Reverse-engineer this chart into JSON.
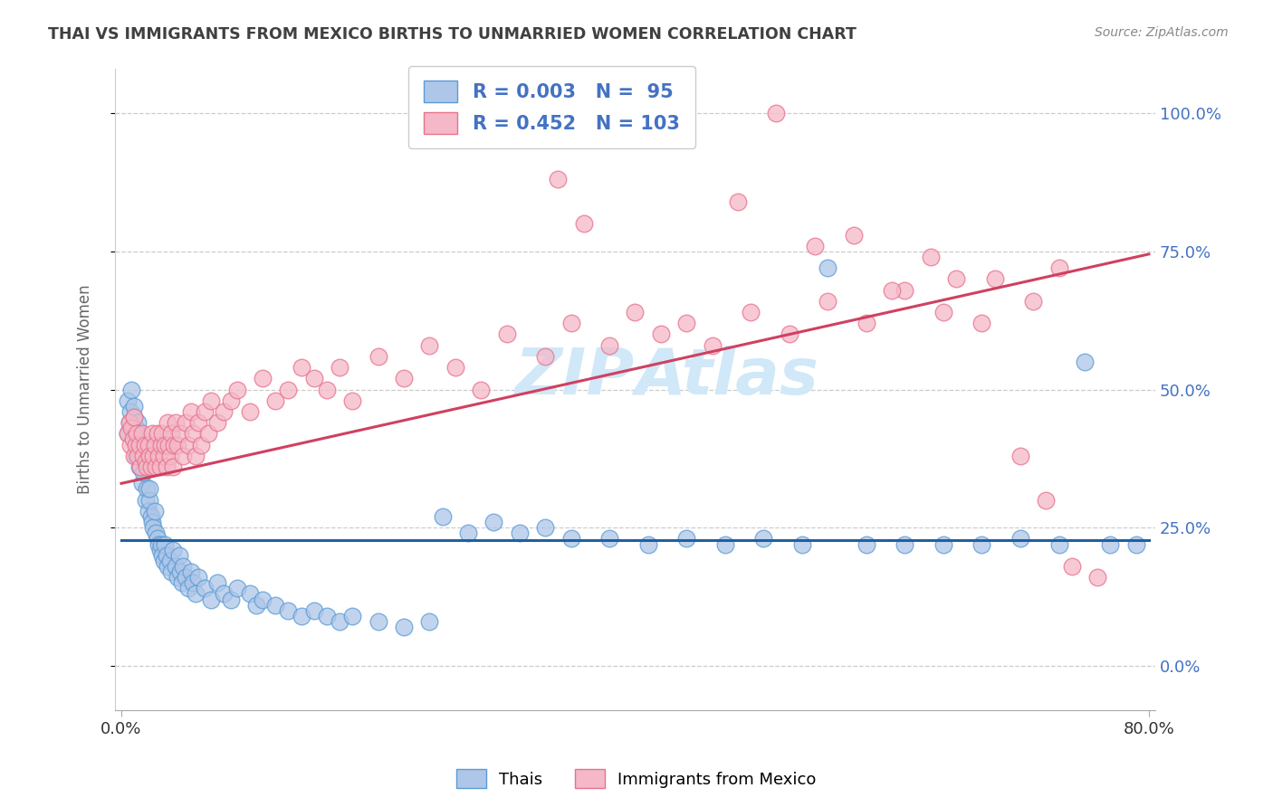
{
  "title": "THAI VS IMMIGRANTS FROM MEXICO BIRTHS TO UNMARRIED WOMEN CORRELATION CHART",
  "source": "Source: ZipAtlas.com",
  "ylabel": "Births to Unmarried Women",
  "ytick_labels": [
    "0.0%",
    "25.0%",
    "50.0%",
    "75.0%",
    "100.0%"
  ],
  "ytick_values": [
    0.0,
    0.25,
    0.5,
    0.75,
    1.0
  ],
  "xlim": [
    0.0,
    0.8
  ],
  "ylim": [
    -0.08,
    1.08
  ],
  "legend_blue_line1": "R = 0.003",
  "legend_blue_line2": "N =  95",
  "legend_pink_line1": "R = 0.452",
  "legend_pink_line2": "N = 103",
  "legend_label_blue": "Thais",
  "legend_label_pink": "Immigrants from Mexico",
  "blue_fill": "#aec6e8",
  "blue_edge": "#5b9bd5",
  "pink_fill": "#f4b8c8",
  "pink_edge": "#e8728a",
  "line_blue": "#2060a0",
  "line_pink": "#d04060",
  "axis_text_color": "#4472c4",
  "title_color": "#404040",
  "source_color": "#888888",
  "grid_color": "#cccccc",
  "watermark_color": "#d0e8f8",
  "blue_line_y0": 0.228,
  "blue_line_y1": 0.228,
  "pink_line_y0": 0.33,
  "pink_line_y1": 0.745,
  "blue_x": [
    0.005,
    0.005,
    0.006,
    0.007,
    0.008,
    0.009,
    0.01,
    0.01,
    0.01,
    0.011,
    0.011,
    0.012,
    0.013,
    0.013,
    0.014,
    0.015,
    0.015,
    0.016,
    0.017,
    0.018,
    0.019,
    0.02,
    0.021,
    0.022,
    0.022,
    0.023,
    0.024,
    0.025,
    0.026,
    0.027,
    0.028,
    0.029,
    0.03,
    0.031,
    0.032,
    0.033,
    0.034,
    0.035,
    0.036,
    0.038,
    0.039,
    0.04,
    0.042,
    0.044,
    0.045,
    0.046,
    0.047,
    0.048,
    0.05,
    0.052,
    0.054,
    0.056,
    0.058,
    0.06,
    0.065,
    0.07,
    0.075,
    0.08,
    0.085,
    0.09,
    0.1,
    0.105,
    0.11,
    0.12,
    0.13,
    0.14,
    0.15,
    0.16,
    0.17,
    0.18,
    0.2,
    0.22,
    0.24,
    0.25,
    0.27,
    0.29,
    0.31,
    0.33,
    0.35,
    0.38,
    0.41,
    0.44,
    0.47,
    0.5,
    0.53,
    0.55,
    0.58,
    0.61,
    0.64,
    0.67,
    0.7,
    0.73,
    0.75,
    0.77,
    0.79
  ],
  "blue_y": [
    0.42,
    0.48,
    0.44,
    0.46,
    0.5,
    0.43,
    0.41,
    0.45,
    0.47,
    0.38,
    0.43,
    0.4,
    0.42,
    0.44,
    0.36,
    0.38,
    0.41,
    0.33,
    0.35,
    0.37,
    0.3,
    0.32,
    0.28,
    0.3,
    0.32,
    0.27,
    0.26,
    0.25,
    0.28,
    0.24,
    0.23,
    0.22,
    0.21,
    0.22,
    0.2,
    0.19,
    0.22,
    0.2,
    0.18,
    0.19,
    0.17,
    0.21,
    0.18,
    0.16,
    0.2,
    0.17,
    0.15,
    0.18,
    0.16,
    0.14,
    0.17,
    0.15,
    0.13,
    0.16,
    0.14,
    0.12,
    0.15,
    0.13,
    0.12,
    0.14,
    0.13,
    0.11,
    0.12,
    0.11,
    0.1,
    0.09,
    0.1,
    0.09,
    0.08,
    0.09,
    0.08,
    0.07,
    0.08,
    0.27,
    0.24,
    0.26,
    0.24,
    0.25,
    0.23,
    0.23,
    0.22,
    0.23,
    0.22,
    0.23,
    0.22,
    0.72,
    0.22,
    0.22,
    0.22,
    0.22,
    0.23,
    0.22,
    0.55,
    0.22,
    0.22
  ],
  "pink_x": [
    0.005,
    0.006,
    0.007,
    0.008,
    0.009,
    0.01,
    0.01,
    0.011,
    0.012,
    0.013,
    0.014,
    0.015,
    0.016,
    0.017,
    0.018,
    0.019,
    0.02,
    0.021,
    0.022,
    0.023,
    0.024,
    0.025,
    0.026,
    0.027,
    0.028,
    0.029,
    0.03,
    0.031,
    0.032,
    0.033,
    0.034,
    0.035,
    0.036,
    0.037,
    0.038,
    0.039,
    0.04,
    0.041,
    0.042,
    0.044,
    0.046,
    0.048,
    0.05,
    0.052,
    0.054,
    0.056,
    0.058,
    0.06,
    0.062,
    0.065,
    0.068,
    0.07,
    0.075,
    0.08,
    0.085,
    0.09,
    0.1,
    0.11,
    0.12,
    0.13,
    0.14,
    0.15,
    0.16,
    0.17,
    0.18,
    0.2,
    0.22,
    0.24,
    0.26,
    0.28,
    0.3,
    0.33,
    0.35,
    0.38,
    0.4,
    0.42,
    0.44,
    0.46,
    0.49,
    0.52,
    0.55,
    0.58,
    0.61,
    0.64,
    0.68,
    0.71,
    0.73,
    0.34,
    0.36,
    0.39,
    0.41,
    0.48,
    0.51,
    0.54,
    0.57,
    0.6,
    0.63,
    0.65,
    0.67,
    0.7,
    0.72,
    0.74,
    0.76
  ],
  "pink_y": [
    0.42,
    0.44,
    0.4,
    0.43,
    0.41,
    0.38,
    0.45,
    0.4,
    0.42,
    0.38,
    0.4,
    0.36,
    0.42,
    0.38,
    0.4,
    0.37,
    0.36,
    0.4,
    0.38,
    0.36,
    0.42,
    0.38,
    0.4,
    0.36,
    0.42,
    0.38,
    0.36,
    0.4,
    0.42,
    0.38,
    0.4,
    0.36,
    0.44,
    0.4,
    0.38,
    0.42,
    0.36,
    0.4,
    0.44,
    0.4,
    0.42,
    0.38,
    0.44,
    0.4,
    0.46,
    0.42,
    0.38,
    0.44,
    0.4,
    0.46,
    0.42,
    0.48,
    0.44,
    0.46,
    0.48,
    0.5,
    0.46,
    0.52,
    0.48,
    0.5,
    0.54,
    0.52,
    0.5,
    0.54,
    0.48,
    0.56,
    0.52,
    0.58,
    0.54,
    0.5,
    0.6,
    0.56,
    0.62,
    0.58,
    0.64,
    0.6,
    0.62,
    0.58,
    0.64,
    0.6,
    0.66,
    0.62,
    0.68,
    0.64,
    0.7,
    0.66,
    0.72,
    0.88,
    0.8,
    1.0,
    1.0,
    0.84,
    1.0,
    0.76,
    0.78,
    0.68,
    0.74,
    0.7,
    0.62,
    0.38,
    0.3,
    0.18,
    0.16
  ]
}
